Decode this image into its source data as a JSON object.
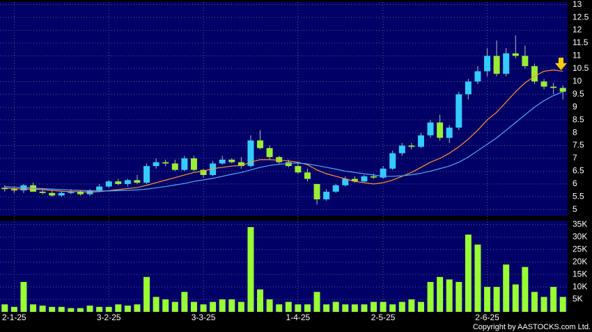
{
  "chart_data": [
    {
      "type": "candlestick",
      "categories": [
        null,
        "2-1-25",
        null,
        null,
        null,
        null,
        null,
        null,
        null,
        null,
        null,
        "3-2-25",
        null,
        null,
        null,
        null,
        null,
        null,
        null,
        null,
        null,
        "3-3-25",
        null,
        null,
        null,
        null,
        null,
        null,
        null,
        null,
        null,
        "1-4-25",
        null,
        null,
        null,
        null,
        null,
        null,
        null,
        null,
        "2-5-25",
        null,
        null,
        null,
        null,
        null,
        null,
        null,
        null,
        null,
        null,
        "2-6-25",
        null,
        null,
        null,
        null,
        null,
        null,
        null,
        null
      ],
      "open": [
        5.85,
        5.8,
        5.75,
        5.95,
        5.7,
        5.65,
        5.55,
        5.65,
        5.7,
        5.6,
        5.75,
        5.9,
        6.1,
        6.0,
        6.15,
        6.05,
        6.7,
        6.85,
        6.8,
        6.55,
        7.0,
        6.55,
        6.35,
        6.8,
        6.95,
        6.85,
        6.7,
        7.7,
        7.4,
        7.05,
        6.85,
        6.7,
        6.45,
        6.0,
        5.4,
        5.7,
        5.95,
        6.2,
        6.1,
        6.3,
        6.25,
        6.6,
        7.2,
        7.5,
        7.45,
        7.9,
        8.4,
        7.8,
        8.2,
        9.5,
        10.0,
        10.4,
        11.0,
        10.3,
        11.1,
        11.0,
        10.6,
        10.0,
        9.8,
        9.75
      ],
      "high": [
        5.95,
        5.9,
        6.0,
        6.05,
        5.8,
        5.75,
        5.7,
        5.8,
        5.75,
        5.8,
        6.0,
        6.15,
        6.2,
        6.2,
        6.35,
        6.8,
        7.0,
        6.95,
        6.95,
        7.1,
        7.1,
        6.6,
        6.9,
        7.1,
        7.0,
        7.05,
        7.9,
        8.1,
        7.5,
        7.1,
        6.95,
        6.8,
        6.6,
        6.0,
        5.8,
        6.0,
        6.3,
        6.3,
        6.35,
        6.4,
        6.7,
        7.3,
        7.6,
        7.6,
        8.0,
        8.5,
        8.7,
        8.3,
        9.6,
        10.1,
        10.6,
        11.3,
        11.6,
        11.3,
        11.8,
        11.4,
        10.7,
        10.1,
        9.95,
        9.85
      ],
      "low": [
        5.7,
        5.65,
        5.65,
        5.7,
        5.6,
        5.5,
        5.5,
        5.6,
        5.55,
        5.55,
        5.7,
        5.85,
        5.95,
        5.9,
        6.0,
        6.0,
        6.6,
        6.7,
        6.5,
        6.5,
        6.5,
        6.25,
        6.3,
        6.75,
        6.8,
        6.6,
        6.65,
        7.35,
        6.95,
        6.8,
        6.65,
        6.4,
        6.1,
        5.2,
        5.35,
        5.65,
        5.9,
        6.05,
        6.05,
        6.2,
        6.2,
        6.55,
        7.1,
        7.35,
        7.4,
        7.8,
        7.7,
        7.6,
        8.1,
        9.3,
        9.9,
        10.2,
        10.2,
        10.2,
        10.9,
        10.5,
        9.9,
        9.7,
        9.5,
        9.3
      ],
      "close": [
        5.8,
        5.75,
        5.95,
        5.7,
        5.65,
        5.55,
        5.65,
        5.7,
        5.6,
        5.75,
        5.9,
        6.1,
        6.0,
        6.15,
        6.05,
        6.7,
        6.85,
        6.8,
        6.55,
        7.0,
        6.55,
        6.35,
        6.8,
        6.95,
        6.85,
        6.7,
        7.7,
        7.4,
        7.05,
        6.85,
        6.7,
        6.45,
        6.2,
        5.4,
        5.7,
        5.95,
        6.2,
        6.1,
        6.3,
        6.25,
        6.6,
        7.2,
        7.5,
        7.45,
        7.9,
        8.4,
        7.8,
        8.2,
        9.5,
        10.0,
        10.4,
        11.0,
        10.3,
        11.1,
        11.0,
        10.6,
        10.0,
        9.8,
        9.75,
        9.6
      ],
      "up_color": "#33ccff",
      "down_color": "#99ee33",
      "series": [
        {
          "color": "#ff9933",
          "values": [
            5.85,
            5.82,
            5.8,
            5.8,
            5.78,
            5.75,
            5.72,
            5.7,
            5.7,
            5.68,
            5.7,
            5.74,
            5.78,
            5.82,
            5.86,
            5.95,
            6.05,
            6.15,
            6.25,
            6.35,
            6.45,
            6.5,
            6.6,
            6.65,
            6.7,
            6.72,
            6.85,
            6.95,
            6.95,
            6.93,
            6.9,
            6.85,
            6.75,
            6.55,
            6.4,
            6.3,
            6.2,
            6.1,
            6.05,
            6.0,
            6.05,
            6.15,
            6.3,
            6.45,
            6.65,
            6.85,
            7.0,
            7.2,
            7.45,
            7.75,
            8.1,
            8.5,
            8.8,
            9.2,
            9.6,
            9.95,
            10.2,
            10.4,
            10.45,
            10.4
          ]
        },
        {
          "color": "#55aaff",
          "values": [
            5.9,
            5.88,
            5.86,
            5.84,
            5.82,
            5.8,
            5.78,
            5.76,
            5.75,
            5.74,
            5.73,
            5.73,
            5.74,
            5.75,
            5.77,
            5.8,
            5.85,
            5.9,
            5.96,
            6.02,
            6.1,
            6.16,
            6.22,
            6.3,
            6.38,
            6.45,
            6.55,
            6.65,
            6.72,
            6.77,
            6.8,
            6.82,
            6.78,
            6.72,
            6.65,
            6.58,
            6.5,
            6.45,
            6.4,
            6.35,
            6.3,
            6.3,
            6.32,
            6.36,
            6.42,
            6.5,
            6.6,
            6.7,
            6.85,
            7.05,
            7.3,
            7.55,
            7.8,
            8.1,
            8.4,
            8.7,
            9.0,
            9.25,
            9.45,
            9.6
          ]
        }
      ],
      "ylim": [
        4.75,
        13.1
      ],
      "yticks": [
        5,
        5.5,
        6,
        6.5,
        7,
        7.5,
        8,
        8.5,
        9,
        9.5,
        10,
        10.5,
        11,
        11.5,
        12,
        12.5,
        13
      ],
      "grid": true
    },
    {
      "type": "bar",
      "values": [
        3000,
        2000,
        12000,
        3000,
        2500,
        2000,
        2000,
        1500,
        1500,
        2500,
        2000,
        2000,
        3000,
        2500,
        3000,
        14000,
        6000,
        5000,
        4000,
        8000,
        4000,
        3000,
        4000,
        5000,
        5000,
        4000,
        34000,
        9000,
        5000,
        3000,
        4000,
        3000,
        3000,
        8000,
        3000,
        4000,
        3000,
        3000,
        3000,
        4000,
        4000,
        3000,
        4000,
        5000,
        4000,
        12000,
        14000,
        13000,
        12000,
        31000,
        27000,
        10000,
        10000,
        19000,
        11000,
        18000,
        8000,
        6000,
        10000,
        6000
      ],
      "color": "#99ff33",
      "ylim": [
        0,
        36500
      ],
      "yticks": [
        {
          "value": 5000,
          "label": "5K"
        },
        {
          "value": 10000,
          "label": "10K"
        },
        {
          "value": 15000,
          "label": "15K"
        },
        {
          "value": 20000,
          "label": "20K"
        },
        {
          "value": 25000,
          "label": "25K"
        },
        {
          "value": 30000,
          "label": "30K"
        },
        {
          "value": 35000,
          "label": "35K"
        }
      ],
      "grid": true,
      "source": "Copyright by AASTOCKS.com Ltd."
    }
  ]
}
